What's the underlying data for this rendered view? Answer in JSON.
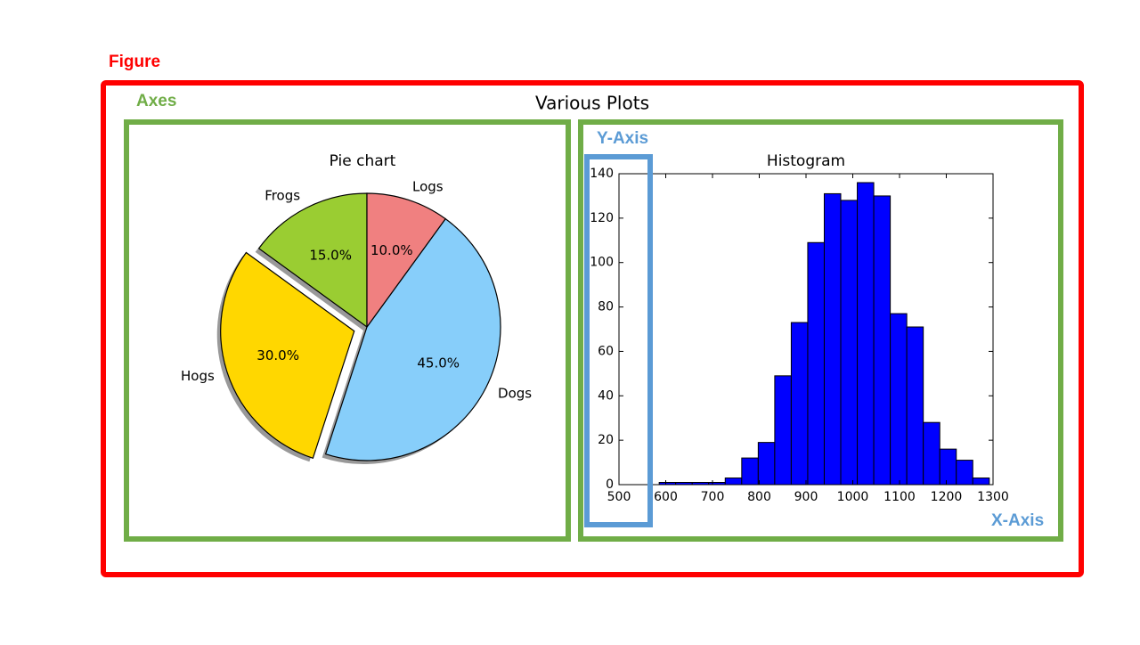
{
  "figure_label": "Figure",
  "axes_label": "Axes",
  "y_axis_label": "Y-Axis",
  "x_axis_label": "X-Axis",
  "figure_title": "Various Plots",
  "chart_data": [
    {
      "type": "pie",
      "title": "Pie chart",
      "categories": [
        "Frogs",
        "Hogs",
        "Dogs",
        "Logs"
      ],
      "values": [
        15,
        30,
        45,
        10
      ],
      "value_labels": [
        "15.0%",
        "30.0%",
        "45.0%",
        "10.0%"
      ],
      "colors": [
        "#9acd32",
        "#ffd700",
        "#87cefa",
        "#f08080"
      ],
      "explode": [
        0,
        0.1,
        0,
        0
      ],
      "start_angle": 90,
      "shadow": true
    },
    {
      "type": "histogram",
      "title": "Histogram",
      "bins": [
        586.0,
        621.3,
        656.6,
        691.9,
        727.2,
        762.5,
        797.8,
        833.1,
        868.4,
        903.7,
        939.0,
        974.3,
        1009.6,
        1044.9,
        1080.2,
        1115.5,
        1150.8,
        1186.1,
        1221.4,
        1256.7,
        1292.0
      ],
      "values": [
        1,
        1,
        1,
        1,
        3,
        12,
        19,
        49,
        73,
        109,
        131,
        128,
        136,
        130,
        77,
        71,
        28,
        16,
        11,
        3
      ],
      "color": "#0000ff",
      "xlim": [
        500,
        1300
      ],
      "xticks": [
        500,
        600,
        700,
        800,
        900,
        1000,
        1100,
        1200,
        1300
      ],
      "ylim": [
        0,
        140
      ],
      "yticks": [
        0,
        20,
        40,
        60,
        80,
        100,
        120,
        140
      ]
    }
  ]
}
